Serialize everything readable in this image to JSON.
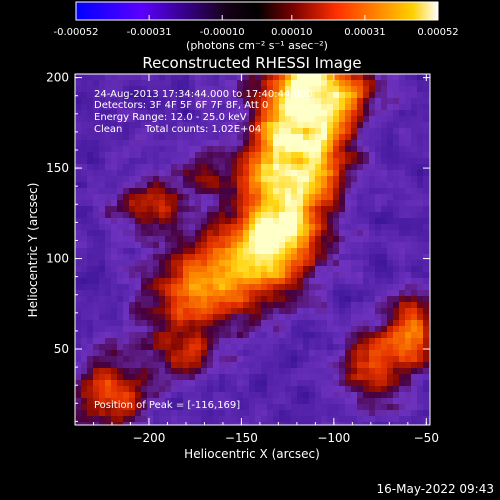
{
  "colorbar": {
    "tick_labels": [
      "-0.00052",
      "-0.00031",
      "-0.00010",
      "0.00010",
      "0.00031",
      "0.00052"
    ],
    "tick_values": [
      -0.00052,
      -0.00031,
      -0.0001,
      0.0001,
      0.00031,
      0.00052
    ],
    "range": [
      -0.00052,
      0.00052
    ],
    "unit_label": "(photons cm⁻² s⁻¹ asec⁻²)",
    "colors": [
      "#0000ff",
      "#5a00ff",
      "#000000",
      "#7a0000",
      "#ff3000",
      "#ff8c00",
      "#ffd000",
      "#ffffff"
    ]
  },
  "chart_data": {
    "type": "heatmap",
    "title": "Reconstructed RHESSI Image",
    "xlabel": "Heliocentric X (arcsec)",
    "ylabel": "Heliocentric Y (arcsec)",
    "xlim": [
      -240,
      -48
    ],
    "ylim": [
      8,
      202
    ],
    "x_ticks": [
      -200,
      -150,
      -100,
      -50
    ],
    "x_tick_labels": [
      "−200",
      "−150",
      "−100",
      "−50"
    ],
    "y_ticks": [
      50,
      100,
      150,
      200
    ],
    "y_tick_labels": [
      "50",
      "100",
      "150",
      "200"
    ],
    "grid": false,
    "peak": [
      -116,
      169
    ],
    "sources": [
      {
        "x": -116,
        "y": 169,
        "sx": 18,
        "sy": 20,
        "a": 1.0
      },
      {
        "x": -128,
        "y": 128,
        "sx": 16,
        "sy": 24,
        "a": 0.9
      },
      {
        "x": -108,
        "y": 196,
        "sx": 20,
        "sy": 12,
        "a": 0.8
      },
      {
        "x": -148,
        "y": 100,
        "sx": 22,
        "sy": 18,
        "a": 0.55
      },
      {
        "x": -175,
        "y": 82,
        "sx": 22,
        "sy": 16,
        "a": 0.55
      },
      {
        "x": -200,
        "y": 130,
        "sx": 14,
        "sy": 12,
        "a": 0.45
      },
      {
        "x": -222,
        "y": 26,
        "sx": 14,
        "sy": 14,
        "a": 0.65
      },
      {
        "x": -182,
        "y": 48,
        "sx": 16,
        "sy": 12,
        "a": 0.4
      },
      {
        "x": -80,
        "y": 42,
        "sx": 12,
        "sy": 16,
        "a": 0.55
      },
      {
        "x": -58,
        "y": 58,
        "sx": 10,
        "sy": 16,
        "a": 0.6
      },
      {
        "x": -170,
        "y": 150,
        "sx": 10,
        "sy": 10,
        "a": 0.35
      }
    ],
    "annotations": {
      "line1": "24-Aug-2013 17:34:44.000 to 17:40:44.000",
      "line2": "Detectors: 3F 4F 5F 6F 7F 8F, Att 0",
      "line3": "Energy Range: 12.0 - 25.0 keV",
      "line4_left": "Clean",
      "line4_right": "Total counts: 1.02E+04",
      "peak_label": "Position of Peak = [-116,169]"
    }
  },
  "footer": {
    "timestamp": "16-May-2022 09:43"
  }
}
